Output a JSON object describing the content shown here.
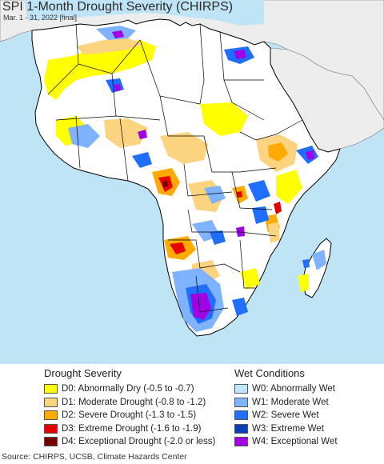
{
  "title": "SPI 1-Month Drought Severity (CHIRPS)",
  "subtitle": "Mar. 1 - 31, 2022 [final]",
  "source": "Source: CHIRPS, UCSB, Climate Hazards Center",
  "colors": {
    "ocean": "#bfe4f6",
    "land_outside": "#ededed",
    "land_inside": "#ffffff",
    "border": "#000000"
  },
  "legend": {
    "drought": {
      "heading": "Drought Severity",
      "items": [
        {
          "label": "D0: Abnormally Dry (-0.5 to -0.7)",
          "color": "#ffff00"
        },
        {
          "label": "D1: Moderate Drought (-0.8 to -1.2)",
          "color": "#fcd37f"
        },
        {
          "label": "D2: Severe Drought (-1.3 to -1.5)",
          "color": "#ffaa00"
        },
        {
          "label": "D3: Extreme Drought (-1.6 to -1.9)",
          "color": "#e60000"
        },
        {
          "label": "D4: Exceptional Drought (-2.0 or less)",
          "color": "#730000"
        }
      ]
    },
    "wet": {
      "heading": "Wet Conditions",
      "items": [
        {
          "label": "W0: Abnormally Wet",
          "color": "#bde6ff"
        },
        {
          "label": "W1: Moderate Wet",
          "color": "#7fb2ff"
        },
        {
          "label": "W2: Severe Wet",
          "color": "#1f6eff"
        },
        {
          "label": "W3: Extreme Wet",
          "color": "#0b3db5"
        },
        {
          "label": "W4: Exceptional Wet",
          "color": "#a000e6"
        }
      ]
    }
  }
}
